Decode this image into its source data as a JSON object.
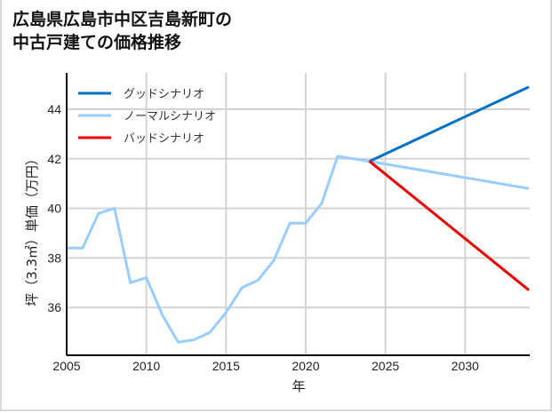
{
  "title_line1": "広島県広島市中区吉島新町の",
  "title_line2": "中古戸建ての価格推移",
  "chart_data": {
    "type": "line",
    "title": "広島県広島市中区吉島新町の中古戸建ての価格推移",
    "xlabel": "年",
    "ylabel": "坪（3.3㎡）単価（万円）",
    "xlim": [
      2005,
      2034
    ],
    "ylim": [
      34.2,
      45.6
    ],
    "xticks": [
      2005,
      2010,
      2015,
      2020,
      2025,
      2030
    ],
    "yticks": [
      36,
      38,
      40,
      42,
      44
    ],
    "grid": true,
    "legend_position": "upper left",
    "series": [
      {
        "name": "グッドシナリオ",
        "color": "#0072c6",
        "x": [
          2024,
          2034
        ],
        "values": [
          41.9,
          44.9
        ]
      },
      {
        "name": "ノーマルシナリオ",
        "color": "#99ccff",
        "x": [
          2005,
          2006,
          2007,
          2008,
          2009,
          2010,
          2011,
          2012,
          2013,
          2014,
          2015,
          2016,
          2017,
          2018,
          2019,
          2020,
          2021,
          2022,
          2023,
          2024,
          2034
        ],
        "values": [
          38.4,
          38.4,
          39.8,
          40.0,
          37.0,
          37.2,
          35.7,
          34.6,
          34.7,
          35.0,
          35.8,
          36.8,
          37.1,
          37.9,
          39.4,
          39.4,
          40.2,
          42.1,
          42.0,
          41.9,
          40.8
        ]
      },
      {
        "name": "バッドシナリオ",
        "color": "#ee0000",
        "x": [
          2024,
          2034
        ],
        "values": [
          41.9,
          36.7
        ]
      }
    ]
  }
}
